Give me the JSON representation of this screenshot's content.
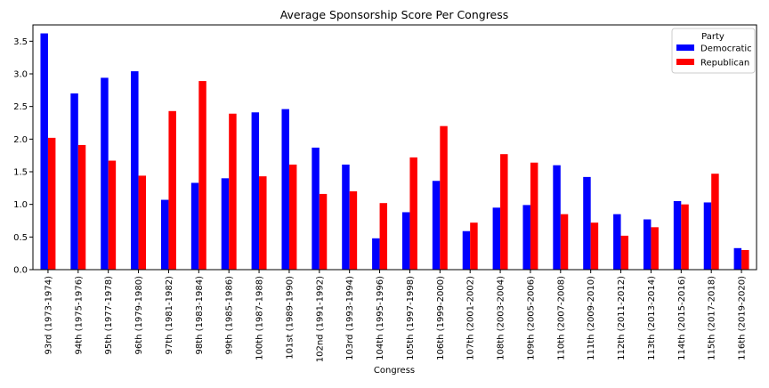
{
  "chart_data": {
    "type": "bar",
    "title": "Average Sponsorship Score Per Congress",
    "xlabel": "Congress",
    "ylabel": "",
    "ylim": [
      0,
      3.75
    ],
    "yticks": [
      0.0,
      0.5,
      1.0,
      1.5,
      2.0,
      2.5,
      3.0,
      3.5
    ],
    "ytick_labels": [
      "0.0",
      "0.5",
      "1.0",
      "1.5",
      "2.0",
      "2.5",
      "3.0",
      "3.5"
    ],
    "grid": false,
    "legend": {
      "title": "Party",
      "position": "top-right"
    },
    "categories": [
      "93rd (1973-1974)",
      "94th (1975-1976)",
      "95th (1977-1978)",
      "96th (1979-1980)",
      "97th (1981-1982)",
      "98th (1983-1984)",
      "99th (1985-1986)",
      "100th (1987-1988)",
      "101st (1989-1990)",
      "102nd (1991-1992)",
      "103rd (1993-1994)",
      "104th (1995-1996)",
      "105th (1997-1998)",
      "106th (1999-2000)",
      "107th (2001-2002)",
      "108th (2003-2004)",
      "109th (2005-2006)",
      "110th (2007-2008)",
      "111th (2009-2010)",
      "112th (2011-2012)",
      "113th (2013-2014)",
      "114th (2015-2016)",
      "115th (2017-2018)",
      "116th (2019-2020)"
    ],
    "series": [
      {
        "name": "Democratic",
        "color": "#0000ff",
        "values": [
          3.62,
          2.7,
          2.94,
          3.04,
          1.07,
          1.33,
          1.4,
          2.41,
          2.46,
          1.87,
          1.61,
          0.48,
          0.88,
          1.36,
          0.59,
          0.95,
          0.99,
          1.6,
          1.42,
          0.85,
          0.77,
          1.05,
          1.03,
          0.33
        ]
      },
      {
        "name": "Republican",
        "color": "#ff0000",
        "values": [
          2.02,
          1.91,
          1.67,
          1.44,
          2.43,
          2.89,
          2.39,
          1.43,
          1.61,
          1.16,
          1.2,
          1.02,
          1.72,
          2.2,
          0.72,
          1.77,
          1.64,
          0.85,
          0.72,
          0.52,
          0.65,
          1.0,
          1.47,
          0.3
        ]
      }
    ]
  }
}
